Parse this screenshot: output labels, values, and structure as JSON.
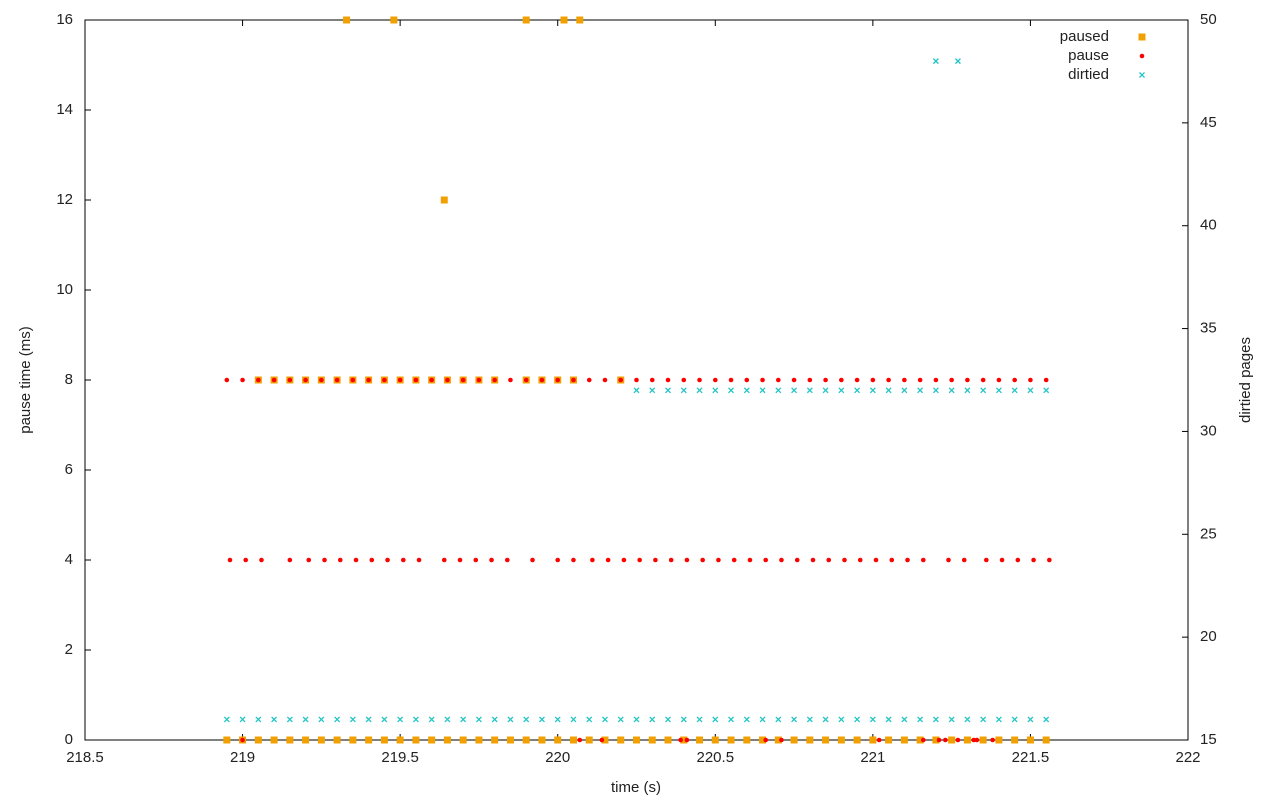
{
  "chart_data": {
    "type": "scatter",
    "x_label": "time (s)",
    "y_label": "pause time (ms)",
    "y2_label": "dirtied pages",
    "xlim": [
      218.5,
      222
    ],
    "xticks": [
      218.5,
      219,
      219.5,
      220,
      220.5,
      221,
      221.5,
      222
    ],
    "ylim": [
      0,
      16
    ],
    "yticks": [
      0,
      2,
      4,
      6,
      8,
      10,
      12,
      14,
      16
    ],
    "y2lim": [
      15,
      50
    ],
    "y2ticks": [
      15,
      20,
      25,
      30,
      35,
      40,
      45,
      50
    ],
    "legend": "top-right",
    "series": [
      {
        "name": "paused",
        "color": "#f0a000",
        "marker": "square",
        "x": [
          218.95,
          219,
          219.05,
          219.1,
          219.15,
          219.2,
          219.25,
          219.3,
          219.35,
          219.4,
          219.45,
          219.5,
          219.55,
          219.6,
          219.65,
          219.7,
          219.75,
          219.8,
          219.85,
          219.9,
          219.95,
          220,
          220.05,
          220.1,
          220.15,
          220.2,
          220.25,
          220.3,
          220.35,
          220.4,
          220.45,
          220.5,
          220.55,
          220.6,
          220.65,
          220.7,
          220.75,
          220.8,
          220.85,
          220.9,
          220.95,
          221,
          221.05,
          221.1,
          221.15,
          221.2,
          221.25,
          221.3,
          221.35,
          221.4,
          221.45,
          221.5,
          221.55,
          219.05,
          219.1,
          219.15,
          219.2,
          219.25,
          219.3,
          219.35,
          219.4,
          219.45,
          219.5,
          219.55,
          219.6,
          219.65,
          219.7,
          219.75,
          219.8,
          219.9,
          219.95,
          220,
          220.05,
          220.2,
          219.33,
          219.48,
          219.9,
          220.02,
          220.07,
          219.64
        ],
        "values": [
          0,
          0,
          0,
          0,
          0,
          0,
          0,
          0,
          0,
          0,
          0,
          0,
          0,
          0,
          0,
          0,
          0,
          0,
          0,
          0,
          0,
          0,
          0,
          0,
          0,
          0,
          0,
          0,
          0,
          0,
          0,
          0,
          0,
          0,
          0,
          0,
          0,
          0,
          0,
          0,
          0,
          0,
          0,
          0,
          0,
          0,
          0,
          0,
          0,
          0,
          0,
          0,
          0,
          8,
          8,
          8,
          8,
          8,
          8,
          8,
          8,
          8,
          8,
          8,
          8,
          8,
          8,
          8,
          8,
          8,
          8,
          8,
          8,
          8,
          16,
          16,
          16,
          16,
          16,
          12
        ]
      },
      {
        "name": "pause",
        "color": "#ff0000",
        "marker": "dot",
        "x": [
          218.95,
          219,
          219.05,
          219.1,
          219.15,
          219.2,
          219.25,
          219.3,
          219.35,
          219.4,
          219.45,
          219.5,
          219.55,
          219.6,
          219.65,
          219.7,
          219.75,
          219.8,
          219.85,
          219.9,
          219.95,
          220,
          220.05,
          220.1,
          220.15,
          220.2,
          220.25,
          220.3,
          220.35,
          220.4,
          220.45,
          220.5,
          220.55,
          220.6,
          220.65,
          220.7,
          220.75,
          220.8,
          220.85,
          220.9,
          220.95,
          221,
          221.05,
          221.1,
          221.15,
          221.2,
          221.25,
          221.3,
          221.35,
          221.4,
          221.45,
          221.5,
          221.55,
          218.96,
          219.01,
          219.06,
          219.15,
          219.21,
          219.26,
          219.31,
          219.36,
          219.41,
          219.46,
          219.51,
          219.56,
          219.64,
          219.69,
          219.74,
          219.79,
          219.84,
          219.92,
          220,
          220.05,
          220.11,
          220.16,
          220.21,
          220.26,
          220.31,
          220.36,
          220.41,
          220.46,
          220.51,
          220.56,
          220.61,
          220.66,
          220.71,
          220.76,
          220.81,
          220.86,
          220.91,
          220.96,
          221.01,
          221.06,
          221.11,
          221.16,
          221.24,
          221.29,
          221.36,
          221.41,
          221.46,
          221.51,
          221.56,
          219,
          220.07,
          220.14,
          220.39,
          220.41,
          220.66,
          220.71,
          221.02,
          221.16,
          221.21,
          221.23,
          221.27,
          221.32,
          221.33,
          221.38
        ],
        "values": [
          8,
          8,
          8,
          8,
          8,
          8,
          8,
          8,
          8,
          8,
          8,
          8,
          8,
          8,
          8,
          8,
          8,
          8,
          8,
          8,
          8,
          8,
          8,
          8,
          8,
          8,
          8,
          8,
          8,
          8,
          8,
          8,
          8,
          8,
          8,
          8,
          8,
          8,
          8,
          8,
          8,
          8,
          8,
          8,
          8,
          8,
          8,
          8,
          8,
          8,
          8,
          8,
          8,
          4,
          4,
          4,
          4,
          4,
          4,
          4,
          4,
          4,
          4,
          4,
          4,
          4,
          4,
          4,
          4,
          4,
          4,
          4,
          4,
          4,
          4,
          4,
          4,
          4,
          4,
          4,
          4,
          4,
          4,
          4,
          4,
          4,
          4,
          4,
          4,
          4,
          4,
          4,
          4,
          4,
          4,
          4,
          4,
          4,
          4,
          4,
          4,
          4,
          0,
          0,
          0,
          0,
          0,
          0,
          0,
          0,
          0,
          0,
          0,
          0,
          0,
          0,
          0
        ]
      },
      {
        "name": "dirtied",
        "color": "#20c4c4",
        "marker": "cross",
        "axis": "y2",
        "x": [
          218.95,
          219,
          219.05,
          219.1,
          219.15,
          219.2,
          219.25,
          219.3,
          219.35,
          219.4,
          219.45,
          219.5,
          219.55,
          219.6,
          219.65,
          219.7,
          219.75,
          219.8,
          219.85,
          219.9,
          219.95,
          220,
          220.05,
          220.1,
          220.15,
          220.2,
          220.25,
          220.3,
          220.35,
          220.4,
          220.45,
          220.5,
          220.55,
          220.6,
          220.65,
          220.7,
          220.75,
          220.8,
          220.85,
          220.9,
          220.95,
          221,
          221.05,
          221.1,
          221.15,
          221.2,
          221.25,
          221.3,
          221.35,
          221.4,
          221.45,
          221.5,
          221.55,
          220.25,
          220.3,
          220.35,
          220.4,
          220.45,
          220.5,
          220.55,
          220.6,
          220.65,
          220.7,
          220.75,
          220.8,
          220.85,
          220.9,
          220.95,
          221,
          221.05,
          221.1,
          221.15,
          221.2,
          221.25,
          221.3,
          221.35,
          221.4,
          221.45,
          221.5,
          221.55,
          221.2,
          221.27
        ],
        "values": [
          16,
          16,
          16,
          16,
          16,
          16,
          16,
          16,
          16,
          16,
          16,
          16,
          16,
          16,
          16,
          16,
          16,
          16,
          16,
          16,
          16,
          16,
          16,
          16,
          16,
          16,
          16,
          16,
          16,
          16,
          16,
          16,
          16,
          16,
          16,
          16,
          16,
          16,
          16,
          16,
          16,
          16,
          16,
          16,
          16,
          16,
          16,
          16,
          16,
          16,
          16,
          16,
          16,
          32,
          32,
          32,
          32,
          32,
          32,
          32,
          32,
          32,
          32,
          32,
          32,
          32,
          32,
          32,
          32,
          32,
          32,
          32,
          32,
          32,
          32,
          32,
          32,
          32,
          32,
          32,
          48,
          48
        ]
      }
    ]
  }
}
